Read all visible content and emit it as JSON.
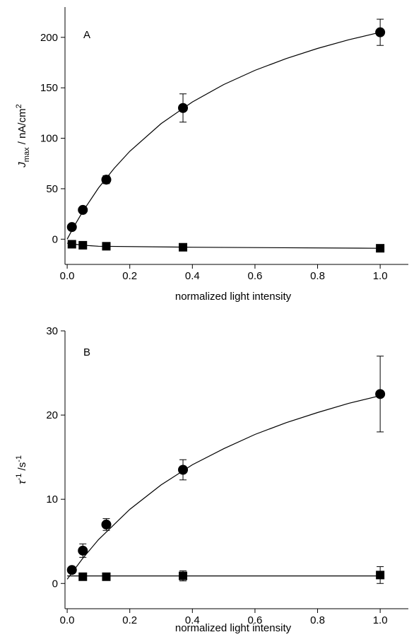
{
  "chart_data": [
    {
      "type": "scatter",
      "panel_label": "A",
      "ylabel": {
        "main": "J",
        "sub": "max",
        "rest": " / nA/cm",
        "sup": "2"
      },
      "xlabel": "normalized light intensity",
      "xlim": [
        -0.007,
        1.09
      ],
      "ylim": [
        -25,
        230
      ],
      "xticks": [
        {
          "value": 0,
          "label": "0.0"
        },
        0.2,
        0.4,
        0.6,
        0.8,
        {
          "value": 1,
          "label": "1.0"
        }
      ],
      "yticks": [
        0,
        50,
        100,
        150,
        200
      ],
      "series": [
        {
          "marker": "circle",
          "color": "#000000",
          "x": [
            0.015,
            0.05,
            0.125,
            0.37,
            1.0
          ],
          "values": [
            12,
            29,
            59,
            130,
            205
          ],
          "errors": [
            null,
            null,
            4,
            14,
            13
          ]
        },
        {
          "marker": "square",
          "color": "#000000",
          "x": [
            0.015,
            0.05,
            0.125,
            0.37,
            1.0
          ],
          "values": [
            -5,
            -6,
            -7,
            -8,
            -9
          ],
          "errors": [
            null,
            null,
            null,
            null,
            null
          ]
        }
      ],
      "fits": [
        {
          "x": [
            0,
            0.02,
            0.05,
            0.1,
            0.15,
            0.2,
            0.3,
            0.4,
            0.5,
            0.6,
            0.7,
            0.8,
            0.9,
            1.0
          ],
          "values": [
            0,
            11.7,
            27.6,
            50.7,
            70.2,
            87.1,
            114.5,
            136.0,
            153.2,
            167.3,
            179.0,
            189.0,
            197.6,
            205.0
          ]
        },
        {
          "x": [
            0,
            0.05,
            0.1,
            0.4,
            1.0
          ],
          "values": [
            -4,
            -6,
            -7,
            -8,
            -9
          ]
        }
      ]
    },
    {
      "type": "scatter",
      "panel_label": "B",
      "ylabel": {
        "main": "τ",
        "sup": "-1",
        "rest": " /s",
        "sup2": "-1"
      },
      "xlabel": "normalized light intensity",
      "xlim": [
        -0.007,
        1.09
      ],
      "ylim": [
        -3,
        30
      ],
      "xticks": [
        {
          "value": 0,
          "label": "0.0"
        },
        0.2,
        0.4,
        0.6,
        0.8,
        {
          "value": 1,
          "label": "1.0"
        }
      ],
      "yticks": [
        0,
        10,
        20,
        30
      ],
      "series": [
        {
          "marker": "circle",
          "color": "#000000",
          "x": [
            0.015,
            0.05,
            0.125,
            0.37,
            1.0
          ],
          "values": [
            1.6,
            3.9,
            7.0,
            13.5,
            22.5
          ],
          "errors": [
            null,
            0.8,
            0.7,
            1.2,
            4.5
          ]
        },
        {
          "marker": "square",
          "color": "#000000",
          "x": [
            0.05,
            0.125,
            0.37,
            1.0
          ],
          "values": [
            0.8,
            0.8,
            0.9,
            1.0
          ],
          "errors": [
            null,
            null,
            0.6,
            1.0
          ]
        }
      ],
      "fits": [
        {
          "x": [
            0,
            0.05,
            0.1,
            0.2,
            0.3,
            0.4,
            0.5,
            0.6,
            0.7,
            0.8,
            0.9,
            1.0
          ],
          "values": [
            0.5,
            3.0,
            5.2,
            8.8,
            11.7,
            14.1,
            16.0,
            17.7,
            19.1,
            20.3,
            21.4,
            22.3
          ]
        },
        {
          "x": [
            0,
            1.0
          ],
          "values": [
            0.9,
            0.9
          ]
        }
      ]
    }
  ]
}
